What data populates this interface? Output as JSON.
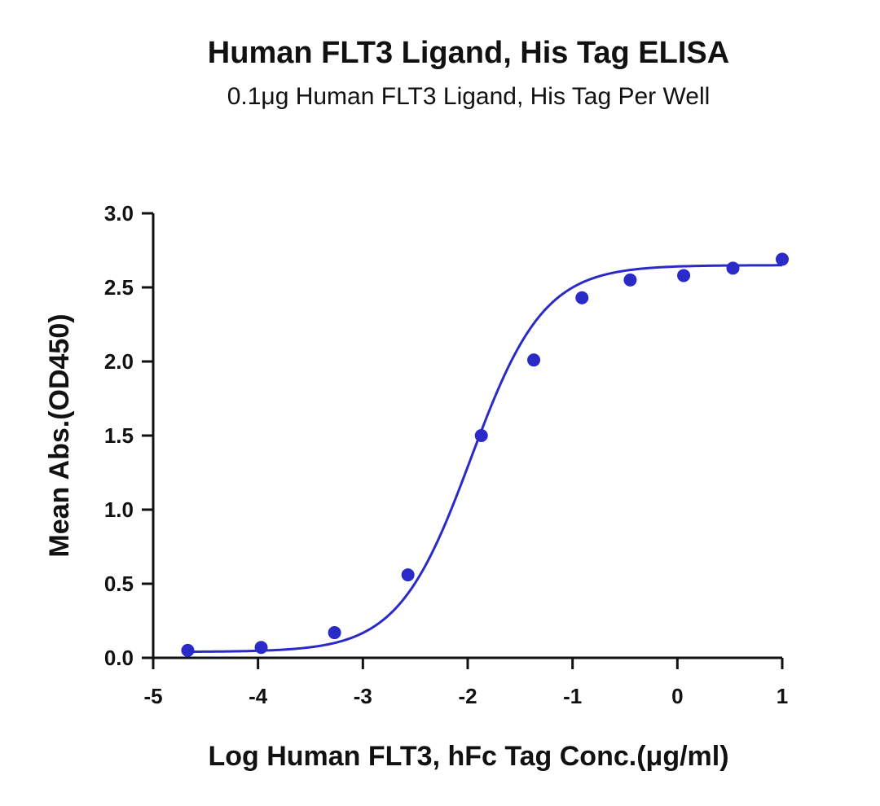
{
  "chart_data": {
    "type": "scatter",
    "title": "Human FLT3 Ligand, His Tag ELISA",
    "subtitle": "0.1μg Human FLT3 Ligand, His Tag Per Well",
    "xlabel": "Log Human FLT3, hFc Tag Conc.(μg/ml)",
    "ylabel": "Mean Abs.(OD450)",
    "xlim": [
      -5,
      1
    ],
    "ylim": [
      0,
      3
    ],
    "x_ticks": [
      -5,
      -4,
      -3,
      -2,
      -1,
      0,
      1
    ],
    "y_ticks": [
      0,
      0.5,
      1,
      1.5,
      2,
      2.5,
      3
    ],
    "x_tick_labels": [
      "-5",
      "-4",
      "-3",
      "-2",
      "-1",
      "0",
      "1"
    ],
    "y_tick_labels": [
      "0.0",
      "0.5",
      "1.0",
      "1.5",
      "2.0",
      "2.5",
      "3.0"
    ],
    "grid": false,
    "legend": "none",
    "color": "#2a2ac8",
    "series": [
      {
        "x": [
          -4.67,
          -3.97,
          -3.27,
          -2.57,
          -1.87,
          -1.37,
          -0.91,
          -0.45,
          0.06,
          0.53,
          1.0
        ],
        "y": [
          0.05,
          0.07,
          0.17,
          0.56,
          1.5,
          2.01,
          2.43,
          2.55,
          2.58,
          2.63,
          2.69
        ]
      }
    ],
    "fit_curve": {
      "model": "4PL",
      "bottom": 0.04,
      "top": 2.65,
      "logEC50": -1.97,
      "hill": 1.25
    }
  }
}
